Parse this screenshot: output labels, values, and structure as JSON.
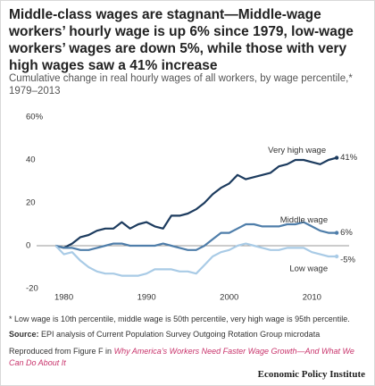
{
  "chart_data": {
    "type": "line",
    "title": "Middle-class wages are stagnant—Middle-wage workers’ hourly wage is up 6% since 1979, low-wage workers’ wages are down 5%, while those with very high wages saw a 41% increase",
    "subtitle": "Cumulative change in real hourly wages of all workers, by wage percentile,* 1979–2013",
    "x": [
      1979,
      1980,
      1981,
      1982,
      1983,
      1984,
      1985,
      1986,
      1987,
      1988,
      1989,
      1990,
      1991,
      1992,
      1993,
      1994,
      1995,
      1996,
      1997,
      1998,
      1999,
      2000,
      2001,
      2002,
      2003,
      2004,
      2005,
      2006,
      2007,
      2008,
      2009,
      2010,
      2011,
      2012,
      2013
    ],
    "xlim": [
      1976.7,
      2014.5
    ],
    "xticks": [
      1980,
      1990,
      2000,
      2010
    ],
    "ylim": [
      -20,
      60
    ],
    "yticks": [
      -20,
      0,
      20,
      40,
      {
        "value": 60,
        "label": "60%"
      }
    ],
    "grid": false,
    "series": [
      {
        "name": "Very high wage",
        "color": "#1d3c5f",
        "values": [
          0,
          -1,
          1,
          4,
          5,
          7,
          8,
          8,
          11,
          8,
          10,
          11,
          9,
          8,
          14,
          14,
          15,
          17,
          20,
          24,
          27,
          29,
          33,
          31,
          32,
          33,
          34,
          37,
          38,
          40,
          40,
          39,
          38,
          40,
          41
        ],
        "value_labels": [
          null,
          null,
          null,
          null,
          null,
          null,
          null,
          null,
          null,
          null,
          null,
          null,
          null,
          null,
          null,
          null,
          null,
          null,
          null,
          null,
          null,
          null,
          null,
          null,
          null,
          null,
          null,
          null,
          null,
          null,
          null,
          null,
          null,
          null,
          "41%"
        ]
      },
      {
        "name": "Middle wage",
        "color": "#4f7eaa",
        "values": [
          0,
          -1,
          -1,
          -2,
          -2,
          -1,
          0,
          1,
          1,
          0,
          0,
          0,
          0,
          1,
          0,
          -1,
          -2,
          -2,
          0,
          3,
          6,
          6,
          8,
          10,
          10,
          9,
          9,
          9,
          10,
          10,
          11,
          9,
          7,
          6,
          6
        ],
        "value_labels": [
          null,
          null,
          null,
          null,
          null,
          null,
          null,
          null,
          null,
          null,
          null,
          null,
          null,
          null,
          null,
          null,
          null,
          null,
          null,
          null,
          null,
          null,
          null,
          null,
          null,
          null,
          null,
          null,
          null,
          null,
          null,
          null,
          null,
          null,
          "6%"
        ]
      },
      {
        "name": "Low wage",
        "color": "#a9cbe6",
        "values": [
          0,
          -4,
          -3,
          -7,
          -10,
          -12,
          -13,
          -13,
          -14,
          -14,
          -14,
          -13,
          -11,
          -11,
          -11,
          -12,
          -12,
          -13,
          -9,
          -5,
          -3,
          -2,
          0,
          1,
          0,
          -1,
          -2,
          -2,
          -1,
          -1,
          -1,
          -3,
          -4,
          -5,
          -5
        ],
        "value_labels": [
          null,
          null,
          null,
          null,
          null,
          null,
          null,
          null,
          null,
          null,
          null,
          null,
          null,
          null,
          null,
          null,
          null,
          null,
          null,
          null,
          null,
          null,
          null,
          null,
          null,
          null,
          null,
          null,
          null,
          null,
          null,
          null,
          null,
          null,
          "-5%"
        ]
      }
    ],
    "footnote": "* Low wage is 10th percentile, middle wage is 50th percentile, very high wage is 95th percentile.",
    "source_label": "Source:",
    "source": "EPI analysis of Current Population Survey Outgoing Rotation Group microdata",
    "reproduced_prefix": "Reproduced from Figure F in",
    "reproduced_link": "Why America’s Workers Need Faster Wage Growth—And What We Can Do About It",
    "credit": "Economic Policy Institute"
  }
}
